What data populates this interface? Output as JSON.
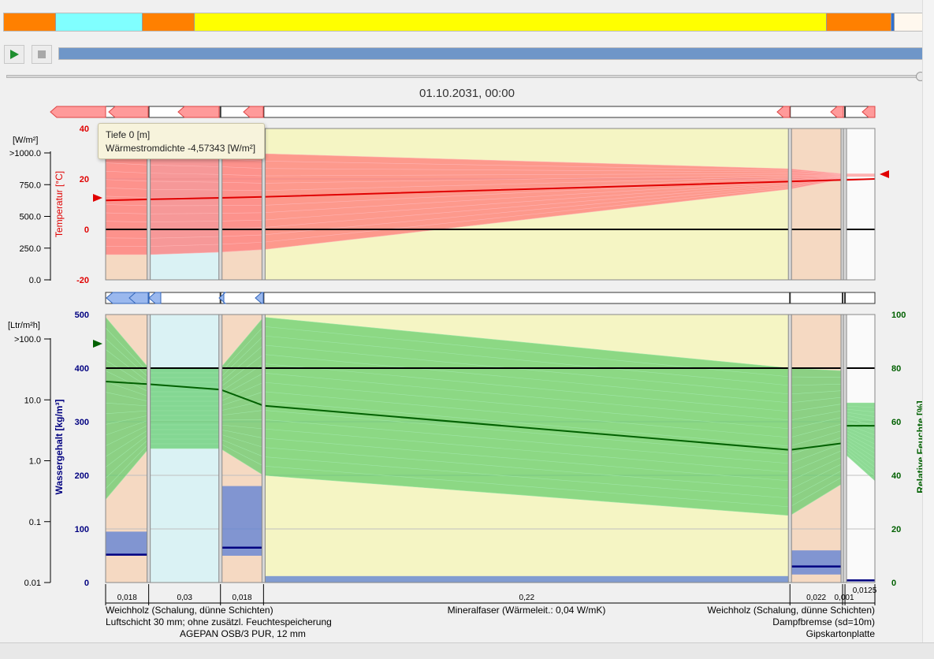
{
  "timeline": {
    "segments": [
      {
        "color": "#ff8000",
        "w": 66
      },
      {
        "color": "#80ffff",
        "w": 110
      },
      {
        "color": "#ff8000",
        "w": 66
      },
      {
        "color": "#ffff00",
        "w": 802
      },
      {
        "color": "#ff8000",
        "w": 82
      },
      {
        "color": "#3070d0",
        "w": 4
      },
      {
        "color": "#fff8ee",
        "w": 48
      }
    ]
  },
  "playback": {
    "progress": 1.0,
    "slider_value": 1.0
  },
  "timestamp": "01.10.2031, 00:00",
  "tooltip": {
    "line1": "Tiefe 0 [m]",
    "line2": "Wärmestromdichte -4,57343 [W/m²]"
  },
  "heat_flux_scale": {
    "unit": "[W/m²]",
    "ticks": [
      ">1000.0",
      "750.0",
      "500.0",
      "250.0",
      "0.0"
    ]
  },
  "moisture_flux_scale": {
    "unit": "[Ltr/m²h]",
    "ticks": [
      ">100.0",
      "10.0",
      "1.0",
      "0.1",
      "0.01"
    ]
  },
  "temperature_chart": {
    "ylabel": "Temperatur [°C]",
    "ticks": [
      "40",
      "20",
      "0",
      "-20"
    ],
    "color": "#e00000"
  },
  "moisture_chart": {
    "ylabel_left": "Wassergehalt [kg/m³]",
    "ylabel_right": "Relative Feuchte [%]",
    "ticks_left": [
      "500",
      "400",
      "300",
      "200",
      "100",
      "0"
    ],
    "ticks_right": [
      "100",
      "80",
      "60",
      "40",
      "20",
      "0"
    ],
    "color_left": "#000080",
    "color_right": "#006000"
  },
  "dimensions": [
    "0,018",
    "0,03",
    "0,018",
    "0,22",
    "0,022",
    "0,001",
    "0,0125"
  ],
  "layer_labels": {
    "row1_left": "Weichholz (Schalung, dünne Schichten)",
    "row1_center": "Mineralfaser (Wärmeleit.: 0,04 W/mK)",
    "row1_right": "Weichholz (Schalung, dünne Schichten)",
    "row2_left": "Luftschicht 30 mm; ohne zusätzl. Feuchtespeicherung",
    "row2_right": "Dampfbremse (sd=10m)",
    "row3_left": "AGEPAN OSB/3 PUR, 12 mm",
    "row3_right": "Gipskartonplatte"
  },
  "chart_data": [
    {
      "type": "line",
      "title": "",
      "xlabel": "",
      "ylabel": "Temperatur [°C]",
      "ylim": [
        -20,
        40
      ],
      "x": [
        0,
        0.018,
        0.048,
        0.066,
        0.286,
        0.308,
        0.309,
        0.3215
      ],
      "series": [
        {
          "values": [
            11.5,
            11.9,
            12.5,
            12.9,
            19.0,
            19.6,
            19.6,
            20.0
          ]
        },
        {
          "values": [
            0,
            0,
            0,
            0,
            0,
            0,
            0,
            0
          ]
        }
      ]
    },
    {
      "type": "line",
      "title": "",
      "xlabel": "",
      "ylabel": "Relative Feuchte [%]",
      "ylim": [
        0,
        100
      ],
      "x": [
        0,
        0.018,
        0.048,
        0.066,
        0.286,
        0.308,
        0.309,
        0.3215
      ],
      "series": [
        {
          "values": [
            75,
            74,
            72,
            66,
            49.5,
            52,
            58.5,
            58.5
          ]
        },
        {
          "values": [
            80,
            80,
            80,
            80,
            80,
            80,
            80,
            80
          ]
        }
      ]
    }
  ]
}
